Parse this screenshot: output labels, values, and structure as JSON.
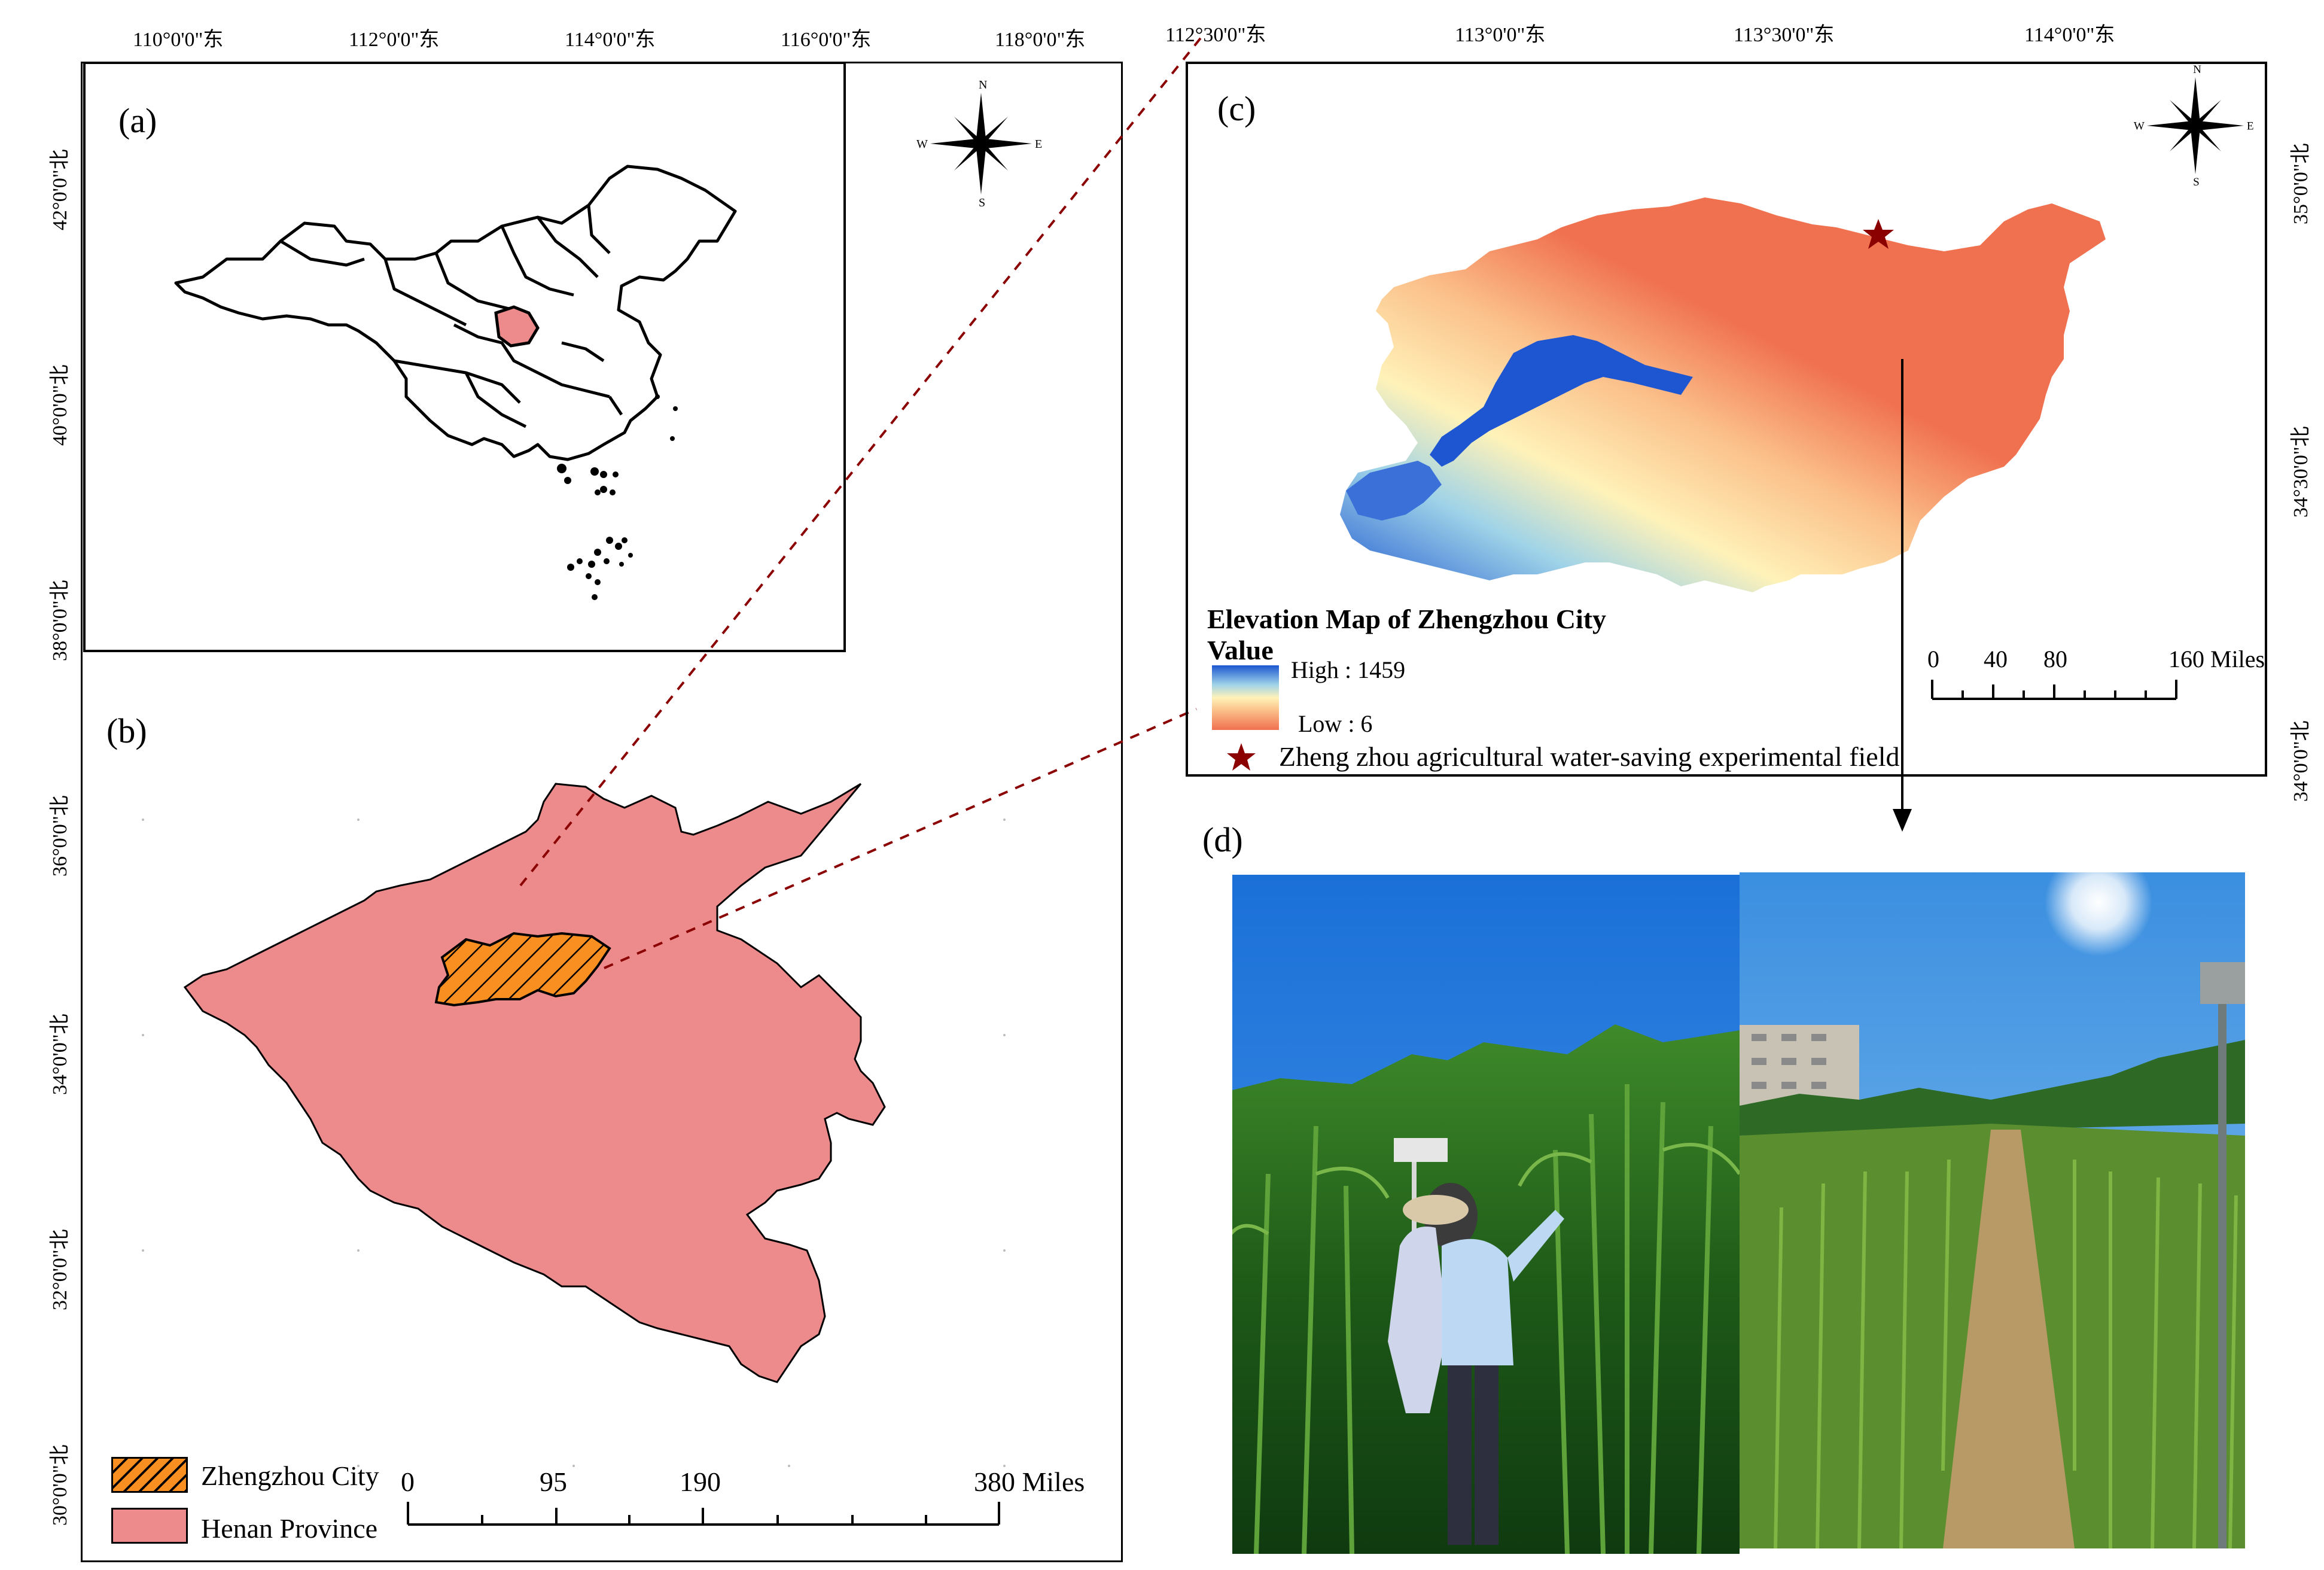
{
  "panels": {
    "a": {
      "letter": "(a)"
    },
    "b": {
      "letter": "(b)"
    },
    "c": {
      "letter": "(c)"
    },
    "d": {
      "letter": "(d)"
    }
  },
  "left_top_ticks": [
    "110°0'0\"东",
    "112°0'0\"东",
    "114°0'0\"东",
    "116°0'0\"东",
    "118°0'0\"东"
  ],
  "left_side_ticks": [
    "42°0'0\"北",
    "40°0'0\"北",
    "38°0'0\"北",
    "36°0'0\"北",
    "34°0'0\"北",
    "32°0'0\"北",
    "30°0'0\"北"
  ],
  "right_top_ticks": [
    "112°30'0\"东",
    "113°0'0\"东",
    "113°30'0\"东",
    "114°0'0\"东"
  ],
  "right_side_ticks": [
    "35°0'0\"北",
    "34°30'0\"北",
    "34°0'0\"北"
  ],
  "compass": {
    "n": "N",
    "s": "S",
    "e": "E",
    "w": "W"
  },
  "panel_b_legend": {
    "zhengzhou": "Zhengzhou City",
    "henan": "Henan Province"
  },
  "panel_b_scale": {
    "labels": [
      "0",
      "95",
      "190",
      "380 Miles"
    ]
  },
  "panel_c": {
    "title": "Elevation Map of Zhengzhou City",
    "value_label": "Value",
    "high": "High : 1459",
    "low": "Low : 6",
    "site": "Zheng zhou agricultural water-saving experimental field",
    "scale_labels": [
      "0",
      "40",
      "80",
      "160 Miles"
    ]
  },
  "colors": {
    "henan_fill": "#ec8a8c",
    "zhengzhou_fill": "#f98f20",
    "leader_line": "#8b0000",
    "elev_low": "#f0714f",
    "elev_mid": "#fff2b8",
    "elev_high": "#1d56d0",
    "star": "#8b0000"
  }
}
